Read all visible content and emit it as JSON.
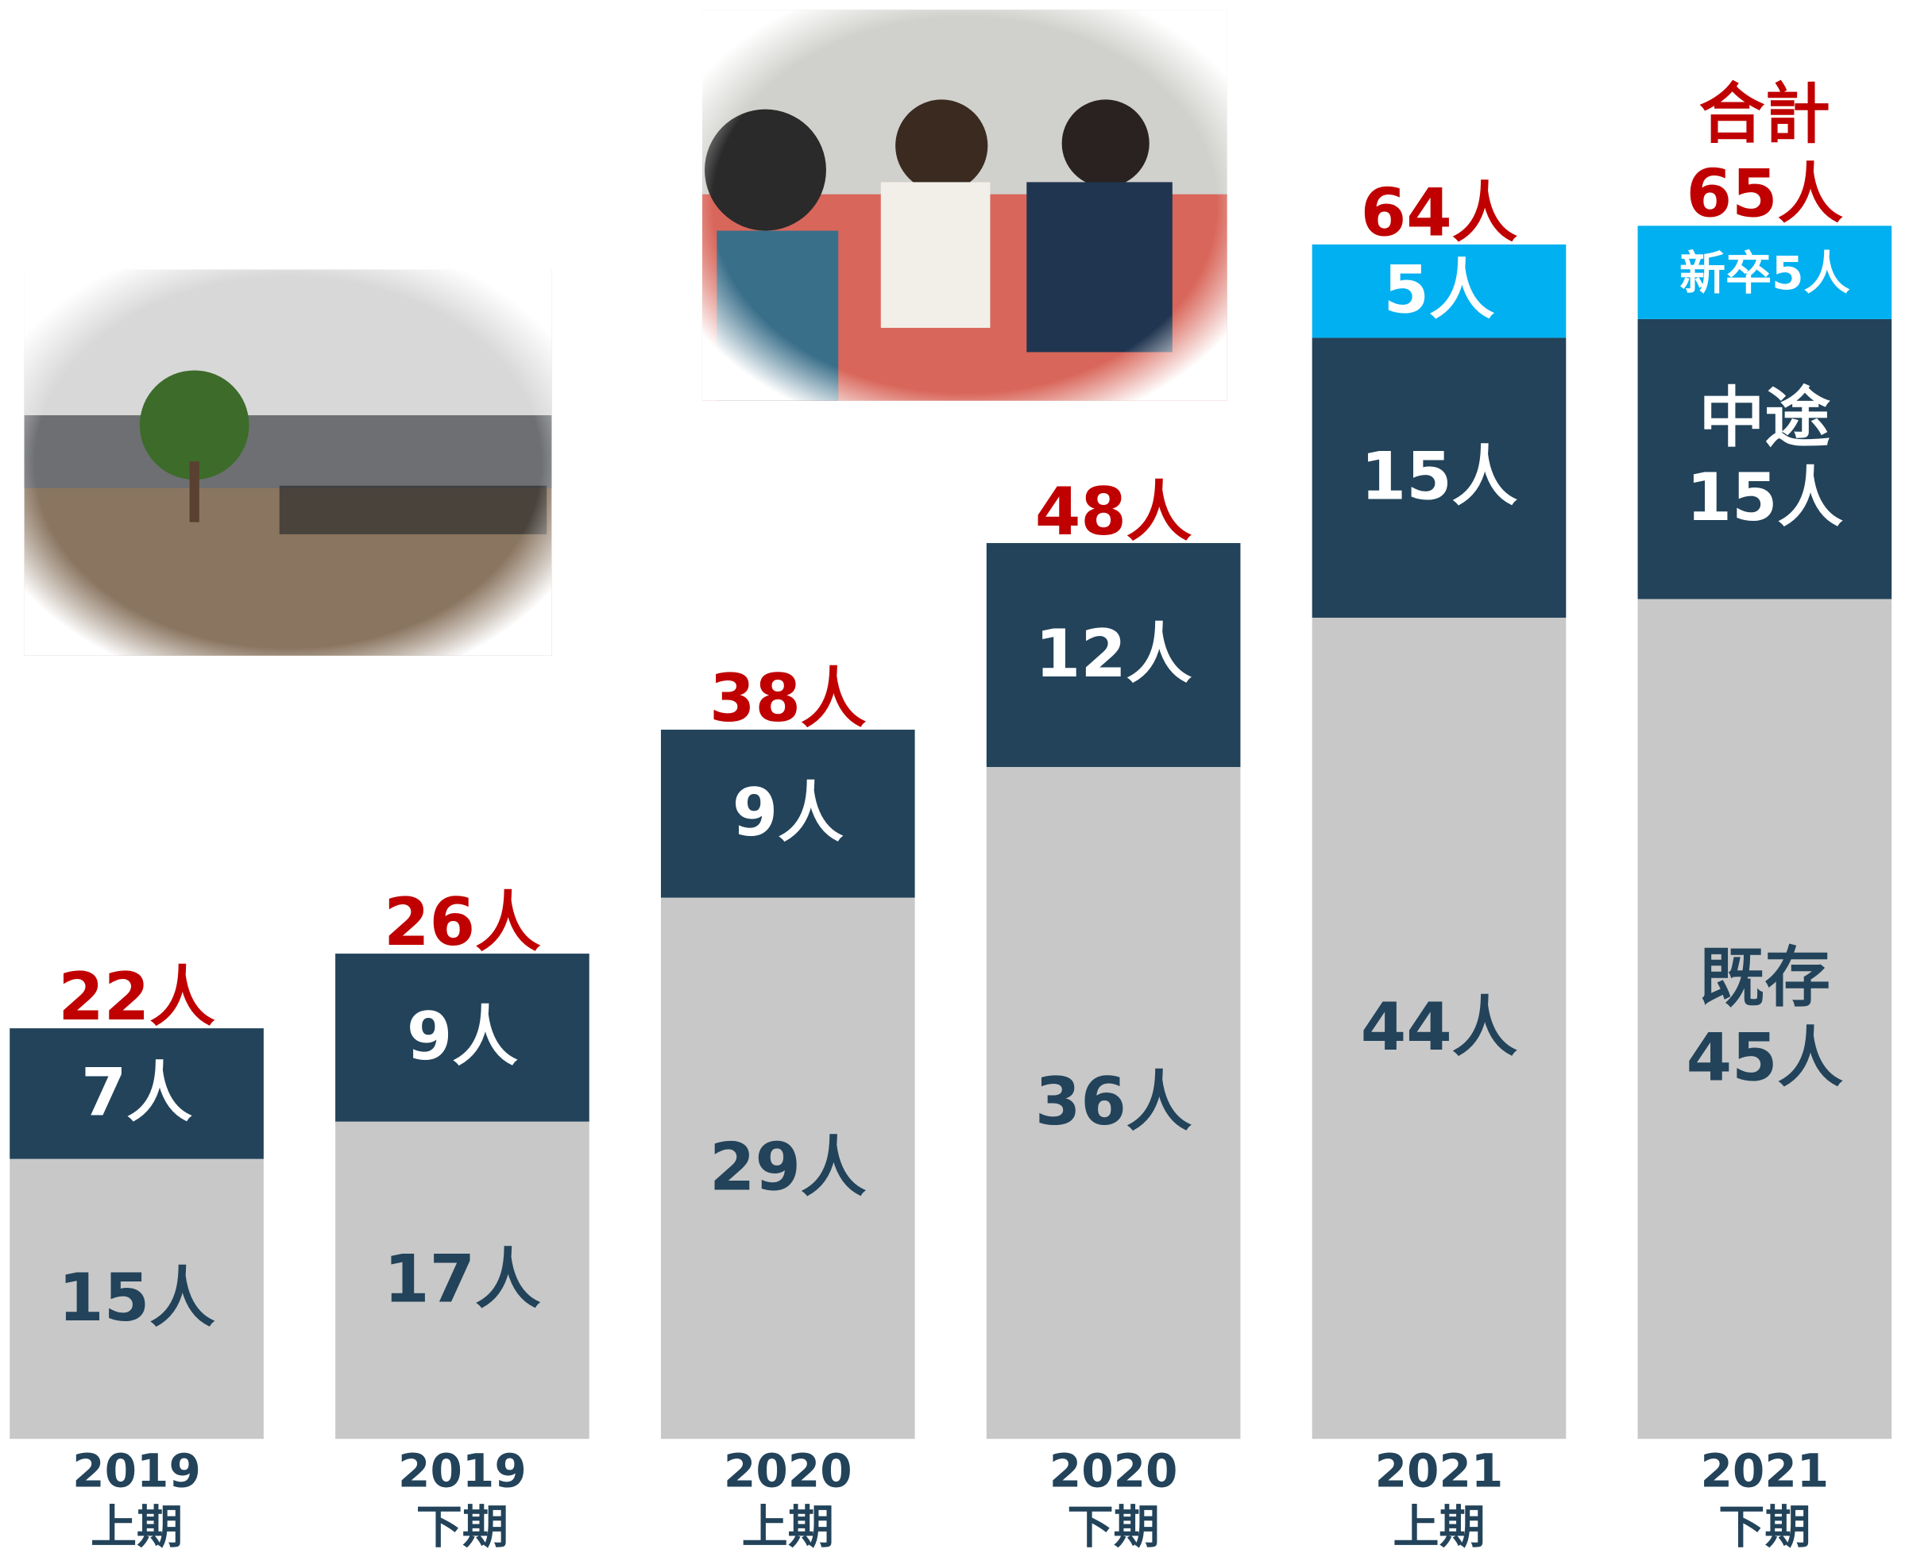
{
  "chart_data": {
    "type": "stacked-bar",
    "categories": [
      "2019\n上期",
      "2019\n下期",
      "2020\n上期",
      "2020\n下期",
      "2021\n上期",
      "2021\n下期"
    ],
    "series": [
      {
        "color": "#c8c8c8",
        "label_color": "#22435a",
        "values": [
          15,
          17,
          29,
          36,
          44,
          45
        ],
        "value_labels": [
          "15人",
          "17人",
          "29人",
          "36人",
          "44人",
          "既存\n45人"
        ]
      },
      {
        "color": "#22435a",
        "label_color": "#ffffff",
        "values": [
          7,
          9,
          9,
          12,
          15,
          15
        ],
        "value_labels": [
          "7人",
          "9人",
          "9人",
          "12人",
          "15人",
          "中途\n15人"
        ]
      },
      {
        "color": "#00b0f0",
        "label_color": "#ffffff",
        "values": [
          null,
          null,
          null,
          null,
          5,
          5
        ],
        "value_labels": [
          null,
          null,
          null,
          null,
          "5人",
          "新卒5人"
        ]
      }
    ],
    "totals": [
      22,
      26,
      38,
      48,
      64,
      65
    ],
    "total_labels": [
      "22人",
      "26人",
      "38人",
      "48人",
      "64人",
      "合計\n65人"
    ],
    "total_color": "#c00000",
    "ylim": [
      0,
      77
    ]
  }
}
